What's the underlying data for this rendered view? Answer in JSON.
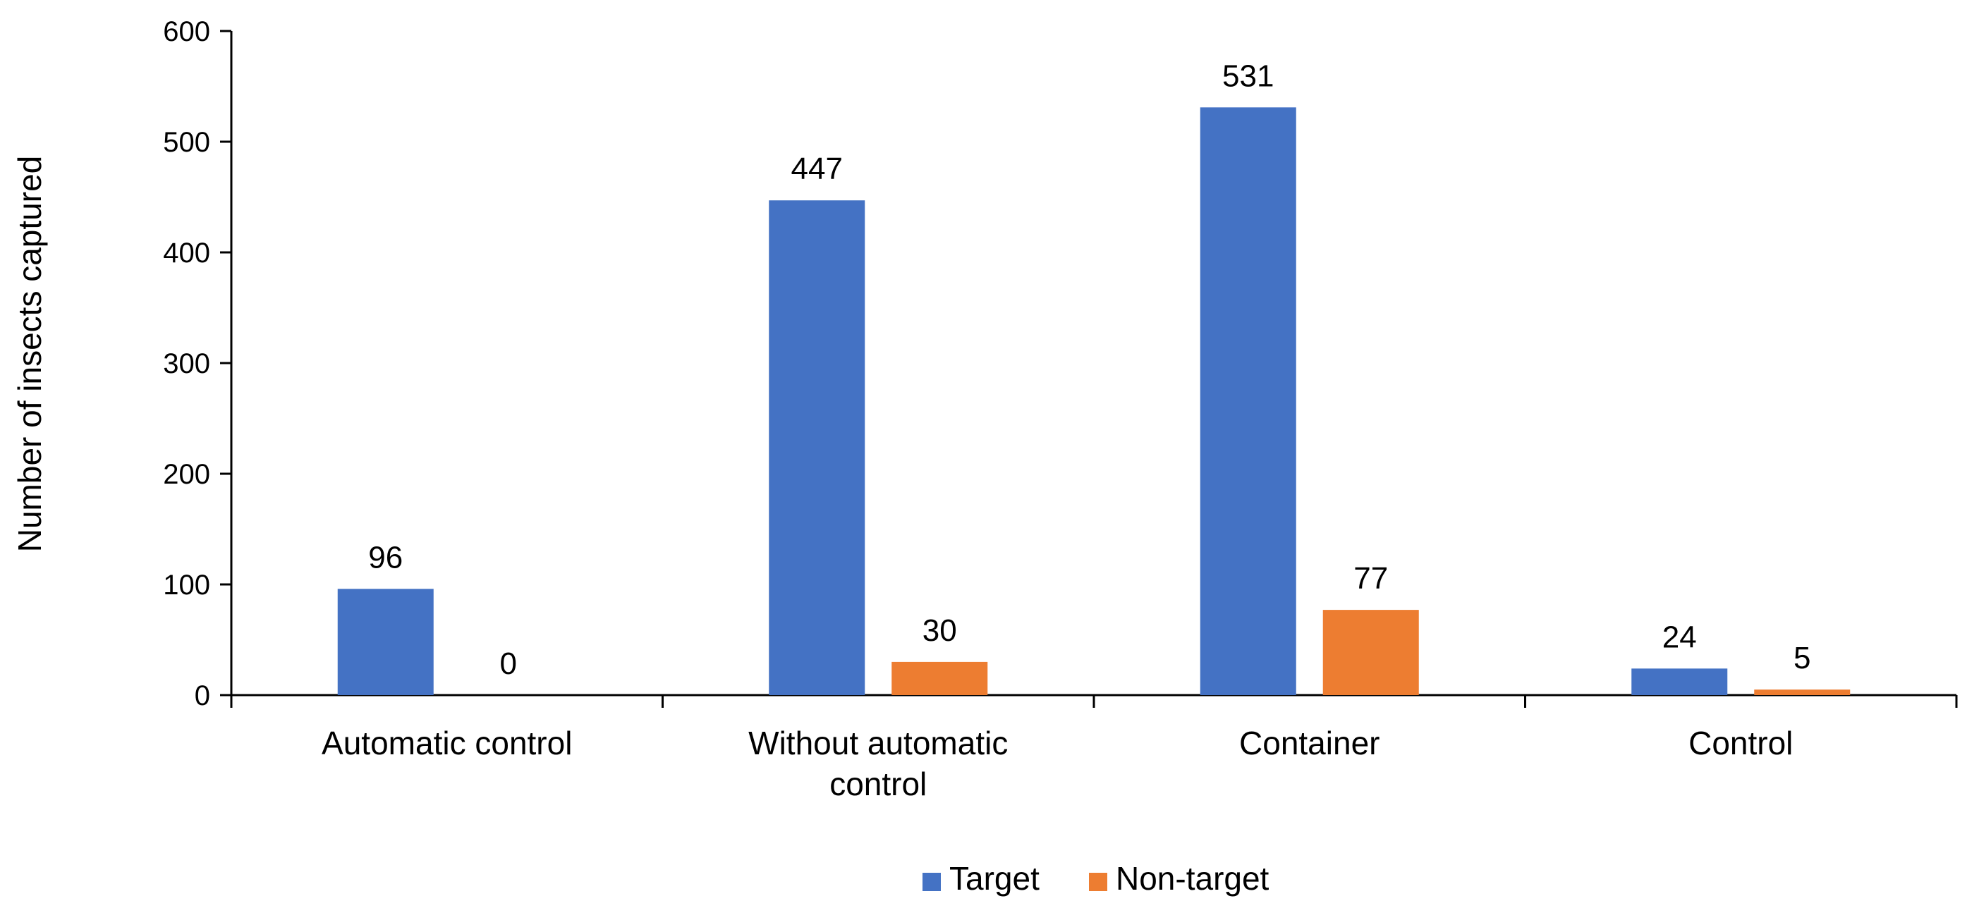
{
  "chart_data": {
    "type": "bar",
    "categories": [
      "Automatic control",
      "Without automatic control",
      "Container",
      "Control"
    ],
    "series": [
      {
        "name": "Target",
        "values": [
          96,
          447,
          531,
          24
        ],
        "color": "#4472C4"
      },
      {
        "name": "Non-target",
        "values": [
          0,
          30,
          77,
          5
        ],
        "color": "#ED7D31"
      }
    ],
    "data_labels": [
      [
        "96",
        "447",
        "531",
        "24"
      ],
      [
        "0",
        "30",
        "77",
        "5"
      ]
    ],
    "title": "",
    "xlabel": "",
    "ylabel": "Number of insects captured",
    "ylim": [
      0,
      600
    ],
    "yticks": [
      0,
      100,
      200,
      300,
      400,
      500,
      600
    ],
    "grid": false,
    "legend": "bottom"
  }
}
